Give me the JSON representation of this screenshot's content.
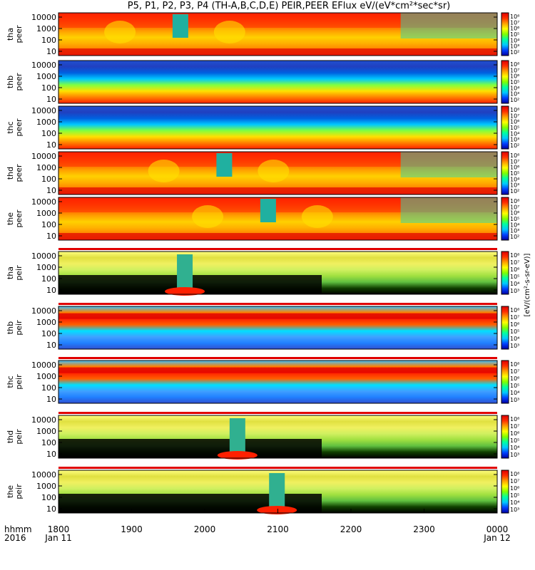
{
  "chart_data": {
    "type": "heatmap",
    "title": "P5, P1, P2, P3, P4 (TH-A,B,C,D,E) PEIR,PEER EFlux eV/(eV*cm²*sec*sr)",
    "x_ticks": [
      "1800",
      "1900",
      "2000",
      "2100",
      "2200",
      "2300",
      "0000"
    ],
    "x_date_labels": [
      "Jan 11",
      "Jan 12"
    ],
    "x_left_labels": [
      "hhmm",
      "2016"
    ],
    "y_ticks": [
      "10000",
      "1000",
      "100",
      "10"
    ],
    "colorbar_label": "[eV/(cm²-s-sr-eV)]",
    "colorbar_ticks_peer": [
      "10⁸",
      "10⁷",
      "10⁶",
      "10⁵",
      "10⁴",
      "10³",
      "10²"
    ],
    "colorbar_ticks_peir": [
      "10⁸",
      "10⁷",
      "10⁶",
      "10⁵",
      "10⁴",
      "10³"
    ],
    "panels": [
      {
        "probe": "tha",
        "species": "peer"
      },
      {
        "probe": "thb",
        "species": "peer"
      },
      {
        "probe": "thc",
        "species": "peer"
      },
      {
        "probe": "thd",
        "species": "peer"
      },
      {
        "probe": "the",
        "species": "peer"
      },
      {
        "probe": "tha",
        "species": "peir"
      },
      {
        "probe": "thb",
        "species": "peir"
      },
      {
        "probe": "thc",
        "species": "peir"
      },
      {
        "probe": "thd",
        "species": "peir"
      },
      {
        "probe": "the",
        "species": "peir"
      }
    ]
  }
}
